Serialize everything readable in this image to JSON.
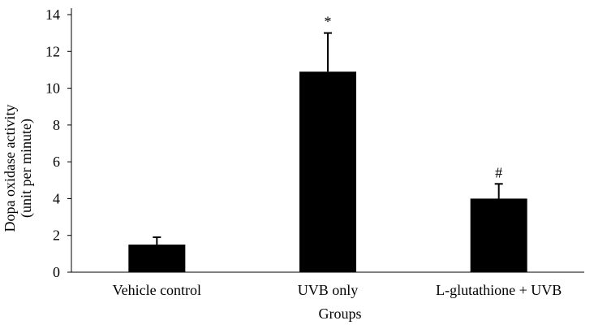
{
  "chart_data": {
    "type": "bar",
    "title": "",
    "xlabel": "Groups",
    "ylabel_line1": "Dopa oxidase activity",
    "ylabel_line2": "(unit per minute)",
    "ylim": [
      0,
      14
    ],
    "yticks": [
      0,
      2,
      4,
      6,
      8,
      10,
      12,
      14
    ],
    "grid": false,
    "categories": [
      "Vehicle control",
      "UVB only",
      "L-glutathione + UVB"
    ],
    "values": [
      1.5,
      10.9,
      4.0
    ],
    "error": [
      0.4,
      2.1,
      0.8
    ],
    "annotations": [
      "",
      "*",
      "#"
    ],
    "bar_color": "#000000"
  }
}
